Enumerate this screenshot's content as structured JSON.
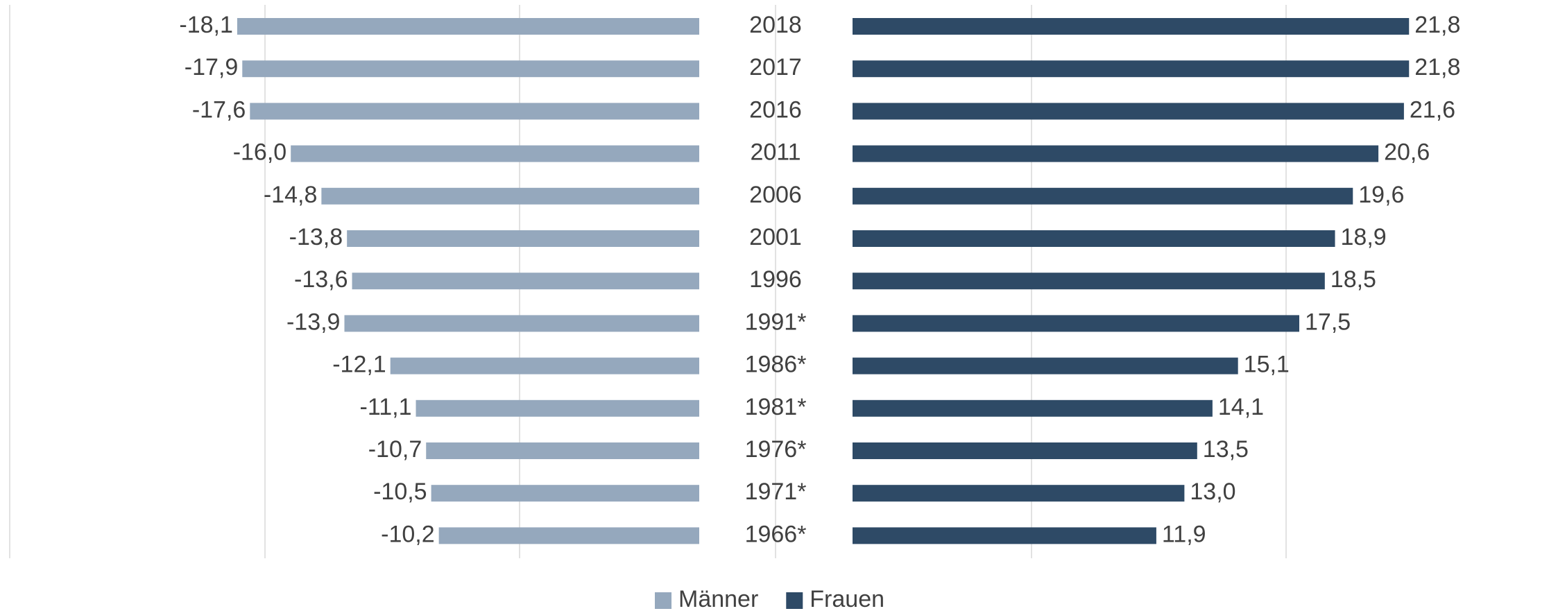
{
  "chart_data": {
    "type": "butterfly-bar",
    "categories": [
      "2018",
      "2017",
      "2016",
      "2011",
      "2006",
      "2001",
      "1996",
      "1991*",
      "1986*",
      "1981*",
      "1976*",
      "1971*",
      "1966*"
    ],
    "series": [
      {
        "name": "Männer",
        "color": "#95a8bd",
        "values": [
          -18.1,
          -17.9,
          -17.6,
          -16.0,
          -14.8,
          -13.8,
          -13.6,
          -13.9,
          -12.1,
          -11.1,
          -10.7,
          -10.5,
          -10.2
        ],
        "value_labels": [
          "-18,1",
          "-17,9",
          "-17,6",
          "-16,0",
          "-14,8",
          "-13,8",
          "-13,6",
          "-13,9",
          "-12,1",
          "-11,1",
          "-10,7",
          "-10,5",
          "-10,2"
        ]
      },
      {
        "name": "Frauen",
        "color": "#2e4a66",
        "values": [
          21.8,
          21.8,
          21.6,
          20.6,
          19.6,
          18.9,
          18.5,
          17.5,
          15.1,
          14.1,
          13.5,
          13.0,
          11.9
        ],
        "value_labels": [
          "21,8",
          "21,8",
          "21,6",
          "20,6",
          "19,6",
          "18,9",
          "18,5",
          "17,5",
          "15,1",
          "14,1",
          "13,5",
          "13,0",
          "11,9"
        ]
      }
    ],
    "legend": "bottom"
  }
}
